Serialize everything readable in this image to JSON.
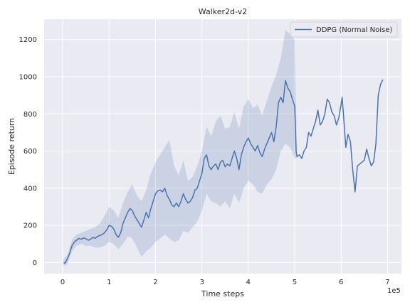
{
  "chart_data": {
    "type": "line",
    "title": "Walker2d-v2",
    "xlabel": "Time steps",
    "ylabel": "Episode return",
    "x_offset_label": "1e5",
    "xlim": [
      -0.4,
      7.3
    ],
    "ylim": [
      -60,
      1310
    ],
    "xticks": [
      0,
      1,
      2,
      3,
      4,
      5,
      6,
      7
    ],
    "yticks": [
      0,
      200,
      400,
      600,
      800,
      1000,
      1200
    ],
    "grid": true,
    "legend_position": "top-right",
    "colors": {
      "background": "#EAEAF2",
      "grid": "#FFFFFF",
      "line": "#4C72B0",
      "band": "#4C72B0"
    },
    "series": [
      {
        "name": "DDPG (Normal Noise)",
        "points": [
          [
            0.02,
            0
          ],
          [
            0.05,
            -5
          ],
          [
            0.1,
            20
          ],
          [
            0.15,
            50
          ],
          [
            0.2,
            90
          ],
          [
            0.25,
            110
          ],
          [
            0.3,
            120
          ],
          [
            0.35,
            130
          ],
          [
            0.4,
            125
          ],
          [
            0.45,
            132
          ],
          [
            0.5,
            128
          ],
          [
            0.55,
            120
          ],
          [
            0.6,
            125
          ],
          [
            0.65,
            135
          ],
          [
            0.7,
            130
          ],
          [
            0.75,
            140
          ],
          [
            0.8,
            145
          ],
          [
            0.85,
            150
          ],
          [
            0.9,
            160
          ],
          [
            0.95,
            175
          ],
          [
            1.0,
            200
          ],
          [
            1.05,
            195
          ],
          [
            1.1,
            180
          ],
          [
            1.15,
            150
          ],
          [
            1.2,
            135
          ],
          [
            1.25,
            160
          ],
          [
            1.3,
            210
          ],
          [
            1.35,
            240
          ],
          [
            1.4,
            270
          ],
          [
            1.45,
            290
          ],
          [
            1.5,
            280
          ],
          [
            1.55,
            250
          ],
          [
            1.6,
            230
          ],
          [
            1.65,
            210
          ],
          [
            1.7,
            190
          ],
          [
            1.75,
            230
          ],
          [
            1.8,
            270
          ],
          [
            1.85,
            240
          ],
          [
            1.9,
            290
          ],
          [
            1.95,
            330
          ],
          [
            2.0,
            370
          ],
          [
            2.05,
            385
          ],
          [
            2.1,
            390
          ],
          [
            2.15,
            380
          ],
          [
            2.2,
            400
          ],
          [
            2.25,
            360
          ],
          [
            2.3,
            340
          ],
          [
            2.35,
            310
          ],
          [
            2.4,
            300
          ],
          [
            2.45,
            320
          ],
          [
            2.5,
            300
          ],
          [
            2.55,
            330
          ],
          [
            2.6,
            370
          ],
          [
            2.65,
            340
          ],
          [
            2.7,
            320
          ],
          [
            2.75,
            330
          ],
          [
            2.8,
            350
          ],
          [
            2.85,
            390
          ],
          [
            2.9,
            400
          ],
          [
            2.95,
            440
          ],
          [
            3.0,
            480
          ],
          [
            3.05,
            560
          ],
          [
            3.1,
            580
          ],
          [
            3.15,
            520
          ],
          [
            3.2,
            500
          ],
          [
            3.25,
            520
          ],
          [
            3.3,
            530
          ],
          [
            3.35,
            500
          ],
          [
            3.4,
            540
          ],
          [
            3.45,
            550
          ],
          [
            3.5,
            515
          ],
          [
            3.55,
            530
          ],
          [
            3.6,
            520
          ],
          [
            3.65,
            560
          ],
          [
            3.7,
            600
          ],
          [
            3.75,
            560
          ],
          [
            3.8,
            500
          ],
          [
            3.85,
            580
          ],
          [
            3.9,
            620
          ],
          [
            3.95,
            650
          ],
          [
            4.0,
            670
          ],
          [
            4.05,
            640
          ],
          [
            4.1,
            620
          ],
          [
            4.15,
            600
          ],
          [
            4.2,
            630
          ],
          [
            4.25,
            590
          ],
          [
            4.3,
            570
          ],
          [
            4.35,
            610
          ],
          [
            4.4,
            640
          ],
          [
            4.45,
            670
          ],
          [
            4.5,
            700
          ],
          [
            4.55,
            650
          ],
          [
            4.6,
            730
          ],
          [
            4.65,
            860
          ],
          [
            4.7,
            890
          ],
          [
            4.75,
            860
          ],
          [
            4.8,
            980
          ],
          [
            4.85,
            940
          ],
          [
            4.9,
            920
          ],
          [
            4.95,
            880
          ],
          [
            5.0,
            840
          ],
          [
            5.03,
            600
          ],
          [
            5.05,
            570
          ],
          [
            5.1,
            580
          ],
          [
            5.15,
            560
          ],
          [
            5.2,
            600
          ],
          [
            5.25,
            620
          ],
          [
            5.3,
            700
          ],
          [
            5.35,
            680
          ],
          [
            5.4,
            720
          ],
          [
            5.45,
            760
          ],
          [
            5.5,
            820
          ],
          [
            5.55,
            740
          ],
          [
            5.6,
            760
          ],
          [
            5.65,
            800
          ],
          [
            5.7,
            880
          ],
          [
            5.75,
            860
          ],
          [
            5.8,
            810
          ],
          [
            5.85,
            790
          ],
          [
            5.9,
            740
          ],
          [
            5.95,
            780
          ],
          [
            6.0,
            850
          ],
          [
            6.02,
            890
          ],
          [
            6.05,
            800
          ],
          [
            6.1,
            620
          ],
          [
            6.15,
            690
          ],
          [
            6.2,
            650
          ],
          [
            6.25,
            500
          ],
          [
            6.3,
            380
          ],
          [
            6.35,
            520
          ],
          [
            6.4,
            530
          ],
          [
            6.45,
            540
          ],
          [
            6.5,
            550
          ],
          [
            6.55,
            610
          ],
          [
            6.6,
            560
          ],
          [
            6.65,
            520
          ],
          [
            6.7,
            540
          ],
          [
            6.75,
            640
          ],
          [
            6.8,
            900
          ],
          [
            6.85,
            960
          ],
          [
            6.9,
            985
          ]
        ],
        "band": [
          [
            0.02,
            -20,
            20
          ],
          [
            0.1,
            -10,
            40
          ],
          [
            0.2,
            60,
            120
          ],
          [
            0.3,
            90,
            150
          ],
          [
            0.4,
            100,
            160
          ],
          [
            0.5,
            90,
            170
          ],
          [
            0.6,
            90,
            180
          ],
          [
            0.7,
            80,
            190
          ],
          [
            0.8,
            80,
            210
          ],
          [
            0.9,
            90,
            250
          ],
          [
            1.0,
            110,
            300
          ],
          [
            1.1,
            100,
            280
          ],
          [
            1.2,
            70,
            240
          ],
          [
            1.3,
            100,
            320
          ],
          [
            1.4,
            140,
            380
          ],
          [
            1.5,
            130,
            420
          ],
          [
            1.6,
            80,
            360
          ],
          [
            1.7,
            30,
            330
          ],
          [
            1.8,
            60,
            390
          ],
          [
            1.9,
            80,
            480
          ],
          [
            2.0,
            110,
            540
          ],
          [
            2.1,
            130,
            580
          ],
          [
            2.2,
            150,
            620
          ],
          [
            2.3,
            130,
            660
          ],
          [
            2.4,
            110,
            520
          ],
          [
            2.5,
            120,
            470
          ],
          [
            2.6,
            170,
            550
          ],
          [
            2.7,
            160,
            440
          ],
          [
            2.8,
            190,
            460
          ],
          [
            2.9,
            220,
            520
          ],
          [
            3.0,
            280,
            600
          ],
          [
            3.1,
            370,
            730
          ],
          [
            3.2,
            330,
            680
          ],
          [
            3.3,
            320,
            760
          ],
          [
            3.4,
            300,
            790
          ],
          [
            3.5,
            330,
            720
          ],
          [
            3.6,
            290,
            730
          ],
          [
            3.7,
            370,
            810
          ],
          [
            3.8,
            320,
            720
          ],
          [
            3.9,
            400,
            840
          ],
          [
            4.0,
            440,
            880
          ],
          [
            4.1,
            420,
            830
          ],
          [
            4.2,
            380,
            850
          ],
          [
            4.3,
            370,
            790
          ],
          [
            4.4,
            420,
            870
          ],
          [
            4.5,
            450,
            950
          ],
          [
            4.6,
            500,
            1010
          ],
          [
            4.7,
            600,
            1100
          ],
          [
            4.8,
            640,
            1250
          ],
          [
            4.9,
            620,
            1230
          ],
          [
            5.0,
            560,
            1200
          ],
          [
            5.05,
            560,
            600
          ]
        ]
      }
    ]
  }
}
